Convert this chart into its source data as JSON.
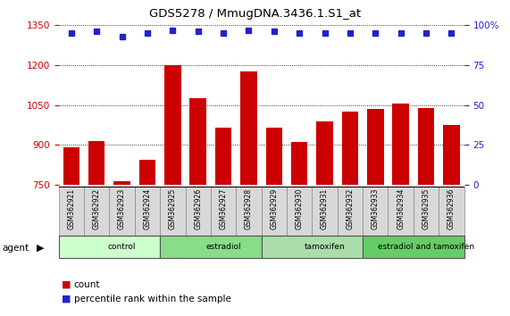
{
  "title": "GDS5278 / MmugDNA.3436.1.S1_at",
  "samples": [
    "GSM362921",
    "GSM362922",
    "GSM362923",
    "GSM362924",
    "GSM362925",
    "GSM362926",
    "GSM362927",
    "GSM362928",
    "GSM362929",
    "GSM362930",
    "GSM362931",
    "GSM362932",
    "GSM362933",
    "GSM362934",
    "GSM362935",
    "GSM362936"
  ],
  "counts": [
    890,
    915,
    765,
    845,
    1200,
    1075,
    965,
    1175,
    965,
    910,
    990,
    1025,
    1035,
    1055,
    1040,
    975
  ],
  "percentile_ranks": [
    95,
    96,
    93,
    95,
    97,
    96,
    95,
    97,
    96,
    95,
    95,
    95,
    95,
    95,
    95,
    95
  ],
  "bar_color": "#cc0000",
  "dot_color": "#2222cc",
  "ylim_left": [
    750,
    1350
  ],
  "ylim_right": [
    0,
    100
  ],
  "yticks_left": [
    750,
    900,
    1050,
    1200,
    1350
  ],
  "yticks_right": [
    0,
    25,
    50,
    75,
    100
  ],
  "groups": [
    {
      "label": "control",
      "start": 0,
      "end": 4,
      "color": "#ccffcc"
    },
    {
      "label": "estradiol",
      "start": 4,
      "end": 8,
      "color": "#88dd88"
    },
    {
      "label": "tamoxifen",
      "start": 8,
      "end": 12,
      "color": "#aaddaa"
    },
    {
      "label": "estradiol and tamoxifen",
      "start": 12,
      "end": 16,
      "color": "#66cc66"
    }
  ],
  "tick_color_left": "#cc0000",
  "tick_color_right": "#2222cc",
  "sample_box_color": "#d8d8d8",
  "sample_box_edge": "#888888",
  "background_color": "#ffffff"
}
